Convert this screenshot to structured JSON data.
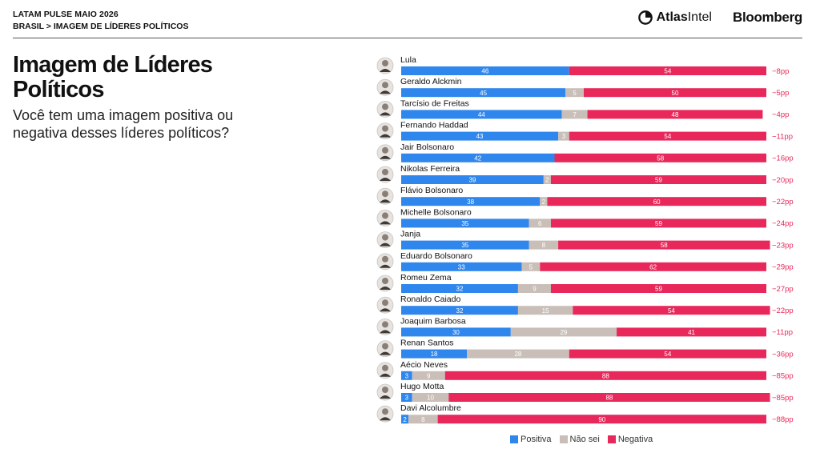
{
  "header": {
    "line1": "LATAM PULSE MAIO 2026",
    "line2": "BRASIL > IMAGEM DE LÍDERES POLÍTICOS"
  },
  "logos": {
    "atlas_bold": "Atlas",
    "atlas_light": "Intel",
    "bloomberg": "Bloomberg"
  },
  "title": "Imagem de Líderes Políticos",
  "subtitle": "Você tem uma imagem positiva ou negativa desses líderes políticos?",
  "colors": {
    "positive": "#2f86ec",
    "unknown": "#c9bfb8",
    "negative": "#e8285a",
    "net": "#e8285a"
  },
  "chart_data": {
    "type": "bar",
    "orientation": "horizontal",
    "stacked": true,
    "categories": [
      "Lula",
      "Geraldo Alckmin",
      "Tarcísio de Freitas",
      "Fernando Haddad",
      "Jair Bolsonaro",
      "Nikolas Ferreira",
      "Flávio Bolsonaro",
      "Michelle Bolsonaro",
      "Janja",
      "Eduardo Bolsonaro",
      "Romeu Zema",
      "Ronaldo Caiado",
      "Joaquim Barbosa",
      "Renan Santos",
      "Aécio Neves",
      "Hugo Motta",
      "Davi Alcolumbre"
    ],
    "series": [
      {
        "name": "Positiva",
        "values": [
          46,
          45,
          44,
          43,
          42,
          39,
          38,
          35,
          35,
          33,
          32,
          32,
          30,
          18,
          3,
          3,
          2
        ]
      },
      {
        "name": "Não sei",
        "values": [
          0,
          5,
          7,
          3,
          0,
          2,
          2,
          6,
          8,
          5,
          9,
          15,
          29,
          28,
          9,
          10,
          8
        ]
      },
      {
        "name": "Negativa",
        "values": [
          54,
          50,
          48,
          54,
          58,
          59,
          60,
          59,
          58,
          62,
          59,
          54,
          41,
          54,
          88,
          88,
          90
        ]
      }
    ],
    "net": [
      "−8pp",
      "−5pp",
      "−4pp",
      "−11pp",
      "−16pp",
      "−20pp",
      "−22pp",
      "−24pp",
      "−23pp",
      "−29pp",
      "−27pp",
      "−22pp",
      "−11pp",
      "−36pp",
      "−85pp",
      "−85pp",
      "−88pp"
    ],
    "legend_position": "bottom"
  }
}
